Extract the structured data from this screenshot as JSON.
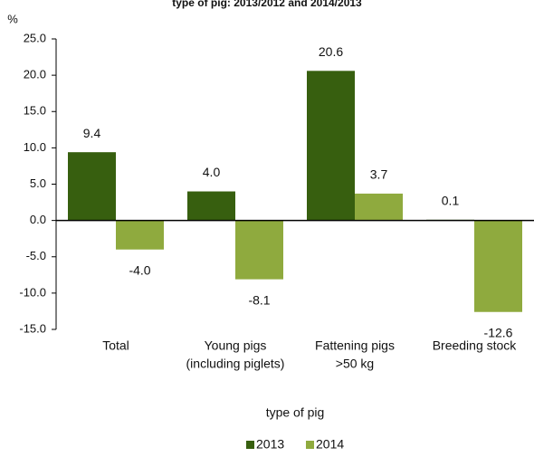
{
  "chart_data": {
    "type": "bar",
    "title": "type of pig:  2013/2012 and 2014/2013",
    "y_unit": "%",
    "xlabel": "type of pig",
    "ylabel": "",
    "ylim": [
      -15,
      25
    ],
    "yticks": [
      25,
      20,
      15,
      10,
      5,
      0,
      -5,
      -10,
      -15
    ],
    "ytick_labels": [
      "25.0",
      "20.0",
      "15.0",
      "10.0",
      "5.0",
      "0.0",
      "-5.0",
      "-10.0",
      "-15.0"
    ],
    "categories": [
      [
        "Total"
      ],
      [
        "Young pigs",
        "(including piglets)"
      ],
      [
        "Fattening pigs",
        ">50 kg"
      ],
      [
        "Breeding stock"
      ]
    ],
    "series": [
      {
        "name": "2013",
        "color": "#375F0F",
        "values": [
          9.4,
          4.0,
          20.6,
          0.1
        ],
        "labels": [
          "9.4",
          "4.0",
          "20.6",
          "0.1"
        ]
      },
      {
        "name": "2014",
        "color": "#8FAA3E",
        "values": [
          -4.0,
          -8.1,
          3.7,
          -12.6
        ],
        "labels": [
          "-4.0",
          "-8.1",
          "3.7",
          "-12.6"
        ]
      }
    ],
    "legend_position": "bottom",
    "grid": false
  }
}
